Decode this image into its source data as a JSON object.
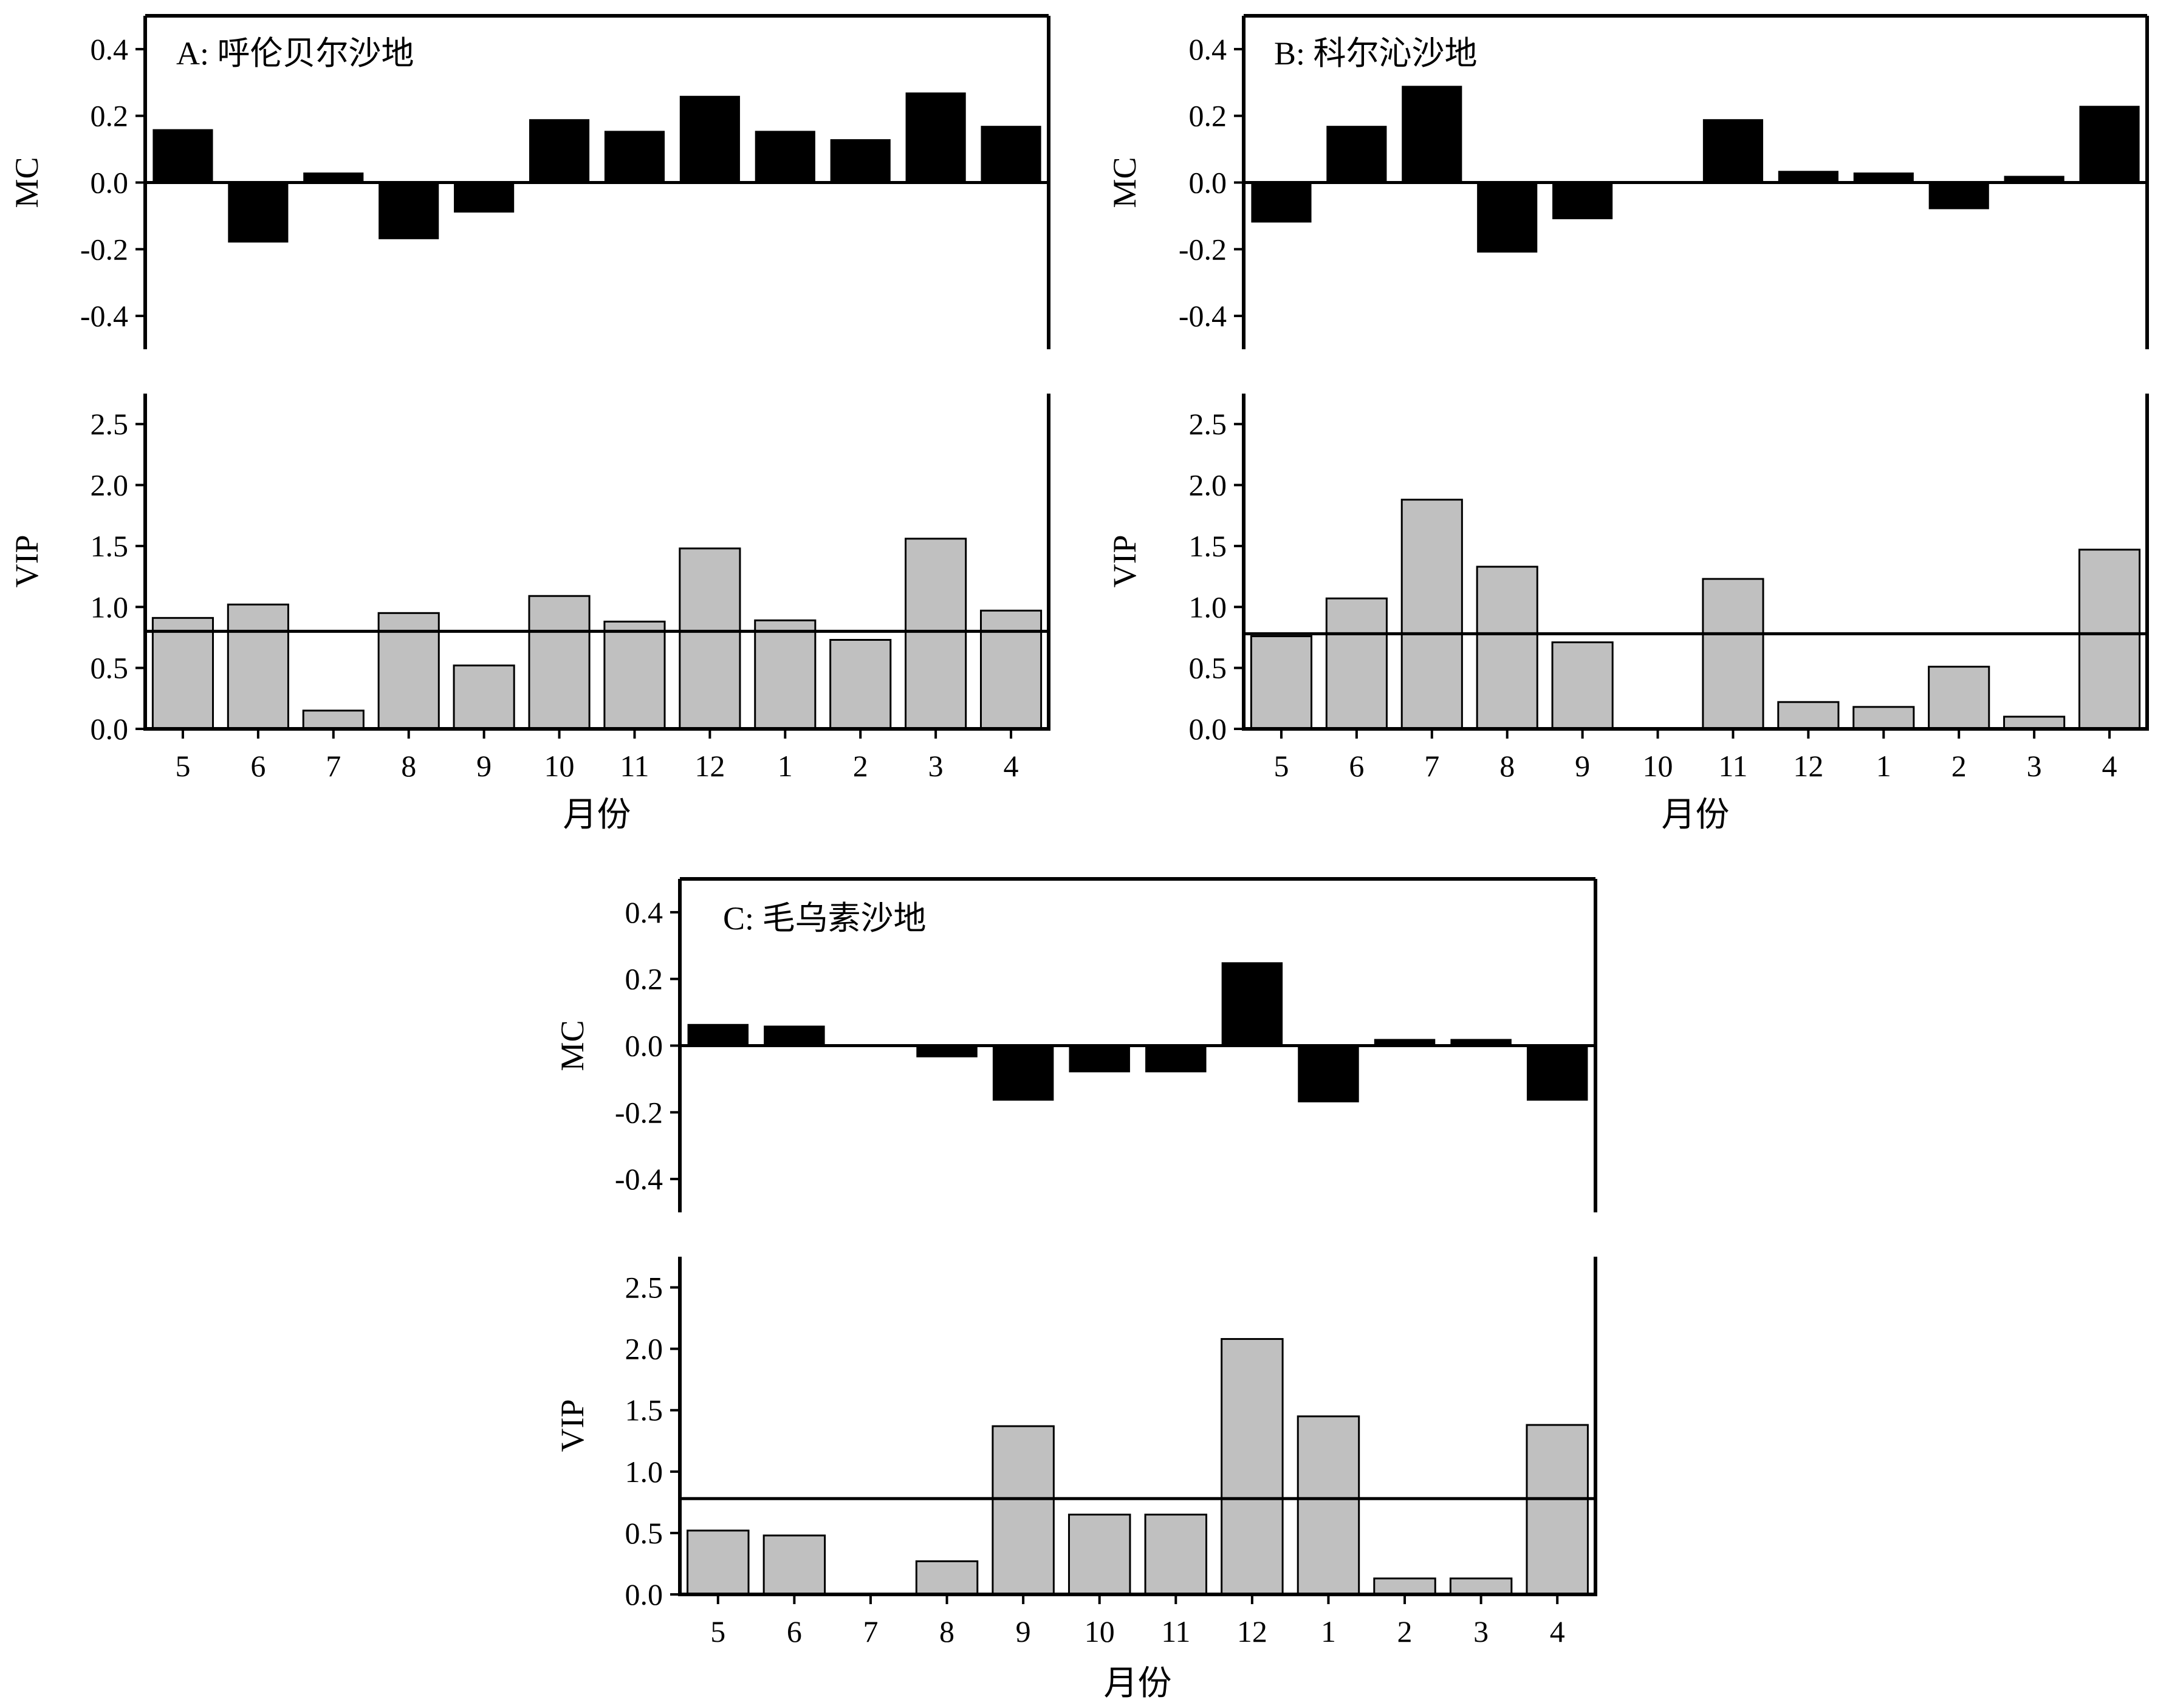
{
  "meta": {
    "mc_color": "#000000",
    "vip_color": "#c0c0c0",
    "vip_stroke": "#000000"
  },
  "chart_data": [
    {
      "type": "bar",
      "title": "A: 呼伦贝尔沙地",
      "categories": [
        "5",
        "6",
        "7",
        "8",
        "9",
        "10",
        "11",
        "12",
        "1",
        "2",
        "3",
        "4"
      ],
      "xlabel": "月份",
      "mc": {
        "ylabel": "MC",
        "ylim": [
          -0.5,
          0.5
        ],
        "yticks": [
          0.4,
          0.2,
          0.0,
          -0.2,
          -0.4
        ],
        "ytick_labels": [
          "0.4",
          "0.2",
          "0.0",
          "-0.2",
          "-0.4"
        ],
        "values": [
          0.16,
          -0.18,
          0.03,
          -0.17,
          -0.09,
          0.19,
          0.155,
          0.26,
          0.155,
          0.13,
          0.27,
          0.17
        ]
      },
      "vip": {
        "ylabel": "VIP",
        "ylim": [
          0,
          2.75
        ],
        "yticks": [
          2.5,
          2.0,
          1.5,
          1.0,
          0.5,
          0.0
        ],
        "ytick_labels": [
          "2.5",
          "2.0",
          "1.5",
          "1.0",
          "0.5",
          "0.0"
        ],
        "threshold": 0.8,
        "values": [
          0.91,
          1.02,
          0.15,
          0.95,
          0.52,
          1.09,
          0.88,
          1.48,
          0.89,
          0.73,
          1.56,
          0.97
        ]
      }
    },
    {
      "type": "bar",
      "title": "B: 科尔沁沙地",
      "categories": [
        "5",
        "6",
        "7",
        "8",
        "9",
        "10",
        "11",
        "12",
        "1",
        "2",
        "3",
        "4"
      ],
      "xlabel": "月份",
      "mc": {
        "ylabel": "MC",
        "ylim": [
          -0.5,
          0.5
        ],
        "yticks": [
          0.4,
          0.2,
          0.0,
          -0.2,
          -0.4
        ],
        "ytick_labels": [
          "0.4",
          "0.2",
          "0.0",
          "-0.2",
          "-0.4"
        ],
        "values": [
          -0.12,
          0.17,
          0.29,
          -0.21,
          -0.11,
          0.0,
          0.19,
          0.035,
          0.03,
          -0.08,
          0.02,
          0.23
        ]
      },
      "vip": {
        "ylabel": "VIP",
        "ylim": [
          0,
          2.75
        ],
        "yticks": [
          2.5,
          2.0,
          1.5,
          1.0,
          0.5,
          0.0
        ],
        "ytick_labels": [
          "2.5",
          "2.0",
          "1.5",
          "1.0",
          "0.5",
          "0.0"
        ],
        "threshold": 0.78,
        "values": [
          0.76,
          1.07,
          1.88,
          1.33,
          0.71,
          0.0,
          1.23,
          0.22,
          0.18,
          0.51,
          0.1,
          1.47
        ]
      }
    },
    {
      "type": "bar",
      "title": "C: 毛乌素沙地",
      "categories": [
        "5",
        "6",
        "7",
        "8",
        "9",
        "10",
        "11",
        "12",
        "1",
        "2",
        "3",
        "4"
      ],
      "xlabel": "月份",
      "mc": {
        "ylabel": "MC",
        "ylim": [
          -0.5,
          0.5
        ],
        "yticks": [
          0.4,
          0.2,
          0.0,
          -0.2,
          -0.4
        ],
        "ytick_labels": [
          "0.4",
          "0.2",
          "0.0",
          "-0.2",
          "-0.4"
        ],
        "values": [
          0.065,
          0.06,
          0.0,
          -0.035,
          -0.165,
          -0.08,
          -0.08,
          0.25,
          -0.17,
          0.02,
          0.02,
          -0.165
        ]
      },
      "vip": {
        "ylabel": "VIP",
        "ylim": [
          0,
          2.75
        ],
        "yticks": [
          2.5,
          2.0,
          1.5,
          1.0,
          0.5,
          0.0
        ],
        "ytick_labels": [
          "2.5",
          "2.0",
          "1.5",
          "1.0",
          "0.5",
          "0.0"
        ],
        "threshold": 0.78,
        "values": [
          0.52,
          0.48,
          0.0,
          0.27,
          1.37,
          0.65,
          0.65,
          2.08,
          1.45,
          0.13,
          0.13,
          1.38
        ]
      }
    }
  ]
}
